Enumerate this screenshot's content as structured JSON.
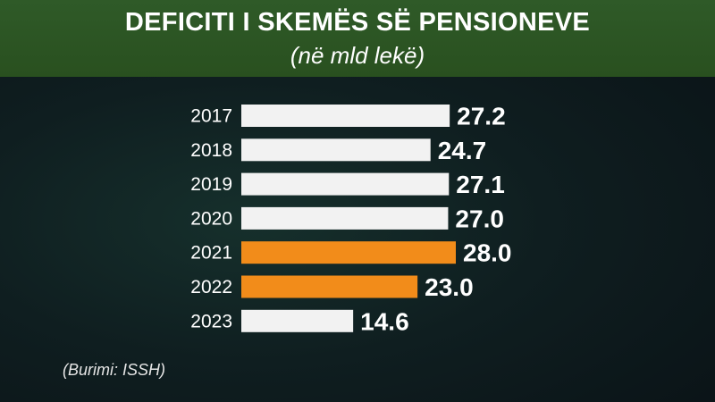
{
  "header": {
    "title": "DEFICITI I SKEMËS SË PENSIONEVE",
    "subtitle": "(në mld lekë)"
  },
  "source": "(Burimi: ISSH)",
  "colors": {
    "header_bg": "#2d5626",
    "bar_default": "#f2f2f2",
    "bar_highlight": "#f28c1a",
    "text": "#ffffff"
  },
  "chart_data": {
    "type": "bar",
    "orientation": "horizontal",
    "title": "DEFICITI I SKEMËS SË PENSIONEVE",
    "subtitle": "(në mld lekë)",
    "categories": [
      "2017",
      "2018",
      "2019",
      "2020",
      "2021",
      "2022",
      "2023"
    ],
    "values": [
      27.2,
      24.7,
      27.1,
      27.0,
      28.0,
      23.0,
      14.6
    ],
    "value_labels": [
      "27.2",
      "24.7",
      "27.1",
      "27.0",
      "28.0",
      "23.0",
      "14.6"
    ],
    "highlighted_categories": [
      "2021",
      "2022"
    ],
    "xlim": [
      0,
      28
    ],
    "grid": false,
    "legend": "none"
  }
}
